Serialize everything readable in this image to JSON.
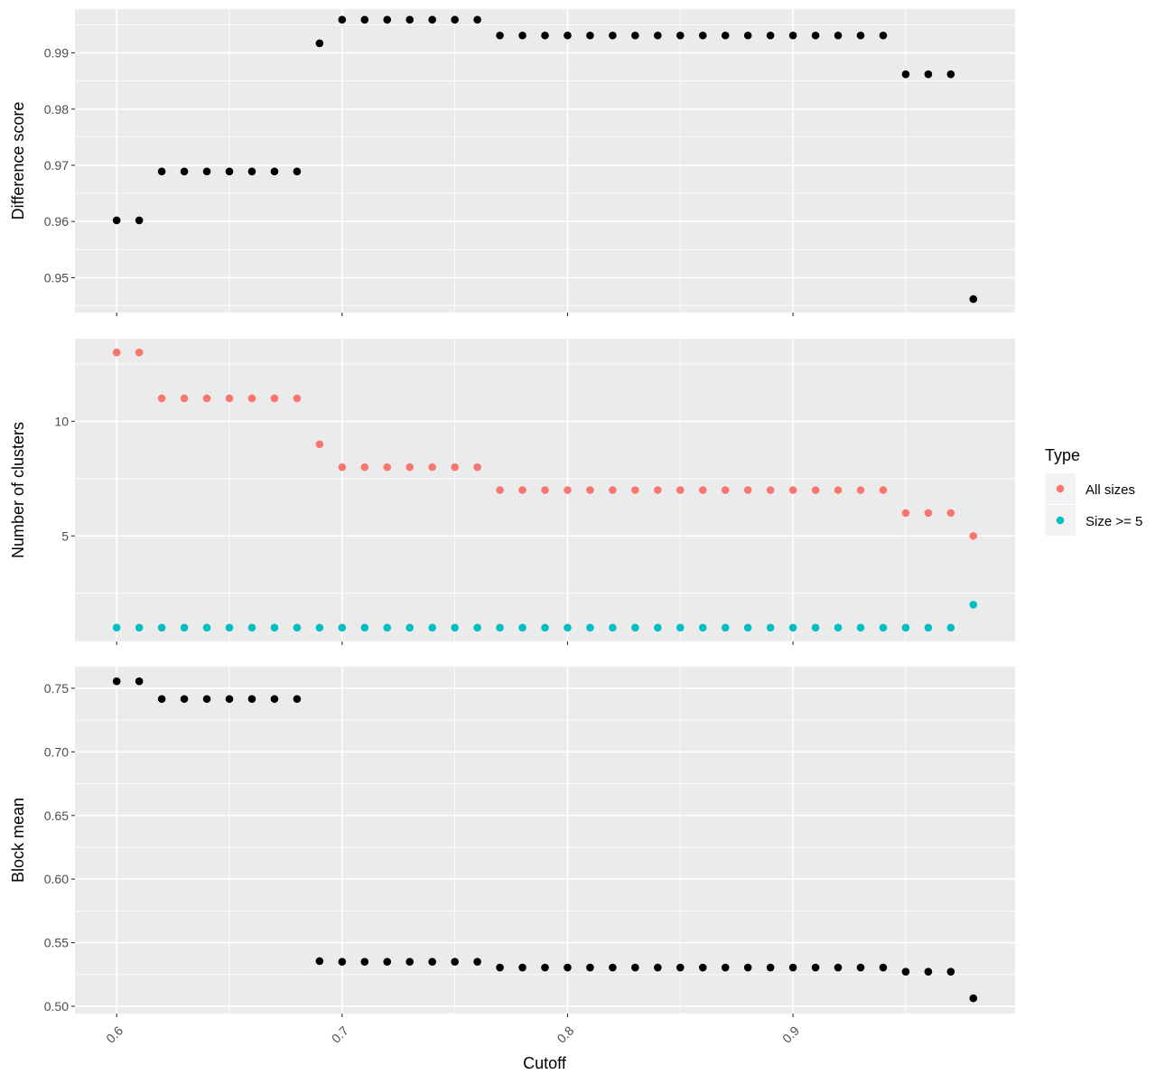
{
  "chart_data": {
    "type": "scatter",
    "xlabel": "Cutoff",
    "x_ticks": [
      "0.6",
      "0.7",
      "0.8",
      "0.9"
    ],
    "x": [
      0.6,
      0.61,
      0.62,
      0.63,
      0.64,
      0.65,
      0.66,
      0.67,
      0.68,
      0.69,
      0.7,
      0.71,
      0.72,
      0.73,
      0.74,
      0.75,
      0.76,
      0.77,
      0.78,
      0.79,
      0.8,
      0.81,
      0.82,
      0.83,
      0.84,
      0.85,
      0.86,
      0.87,
      0.88,
      0.89,
      0.9,
      0.91,
      0.92,
      0.93,
      0.94,
      0.95,
      0.96,
      0.97,
      0.98
    ],
    "xlim": [
      0.5815,
      0.9985
    ],
    "background": "#ebebeb",
    "grid": true,
    "legend_position": "right",
    "legend": {
      "title": "Type",
      "entries": [
        {
          "label": "All sizes",
          "color": "#f8766d"
        },
        {
          "label": "Size >= 5",
          "color": "#00bfc4"
        }
      ]
    },
    "panels": [
      {
        "ylabel": "Difference score",
        "y_ticks": [
          "0.95",
          "0.96",
          "0.97",
          "0.98",
          "0.99"
        ],
        "ylim": [
          0.9438,
          0.9978
        ],
        "series": [
          {
            "color": "#000000",
            "values": [
              0.9602,
              0.9602,
              0.9689,
              0.9689,
              0.9689,
              0.9689,
              0.9689,
              0.9689,
              0.9689,
              0.9917,
              0.9959,
              0.9959,
              0.9959,
              0.9959,
              0.9959,
              0.9959,
              0.9959,
              0.9931,
              0.9931,
              0.9931,
              0.9931,
              0.9931,
              0.9931,
              0.9931,
              0.9931,
              0.9931,
              0.9931,
              0.9931,
              0.9931,
              0.9931,
              0.9931,
              0.9931,
              0.9931,
              0.9931,
              0.9931,
              0.9862,
              0.9862,
              0.9862,
              0.9462
            ]
          }
        ]
      },
      {
        "ylabel": "Number of clusters",
        "y_ticks": [
          "5",
          "10"
        ],
        "ylim": [
          0.4,
          13.6
        ],
        "series": [
          {
            "name": "All sizes",
            "color": "#f8766d",
            "values": [
              13,
              13,
              11,
              11,
              11,
              11,
              11,
              11,
              11,
              9,
              8,
              8,
              8,
              8,
              8,
              8,
              8,
              7,
              7,
              7,
              7,
              7,
              7,
              7,
              7,
              7,
              7,
              7,
              7,
              7,
              7,
              7,
              7,
              7,
              7,
              6,
              6,
              6,
              5
            ]
          },
          {
            "name": "Size >= 5",
            "color": "#00bfc4",
            "values": [
              1,
              1,
              1,
              1,
              1,
              1,
              1,
              1,
              1,
              1,
              1,
              1,
              1,
              1,
              1,
              1,
              1,
              1,
              1,
              1,
              1,
              1,
              1,
              1,
              1,
              1,
              1,
              1,
              1,
              1,
              1,
              1,
              1,
              1,
              1,
              1,
              1,
              1,
              2
            ]
          }
        ]
      },
      {
        "ylabel": "Block mean",
        "y_ticks": [
          "0.50",
          "0.55",
          "0.60",
          "0.65",
          "0.70",
          "0.75"
        ],
        "ylim": [
          0.4943,
          0.767
        ],
        "series": [
          {
            "color": "#000000",
            "values": [
              0.7555,
              0.7555,
              0.7416,
              0.7416,
              0.7416,
              0.7416,
              0.7416,
              0.7416,
              0.7416,
              0.5355,
              0.535,
              0.535,
              0.535,
              0.535,
              0.535,
              0.535,
              0.535,
              0.5305,
              0.5305,
              0.5305,
              0.5305,
              0.5305,
              0.5305,
              0.5305,
              0.5305,
              0.5305,
              0.5305,
              0.5305,
              0.5305,
              0.5305,
              0.5305,
              0.5305,
              0.5305,
              0.5305,
              0.5305,
              0.5272,
              0.5272,
              0.5272,
              0.5063
            ]
          }
        ]
      }
    ]
  }
}
